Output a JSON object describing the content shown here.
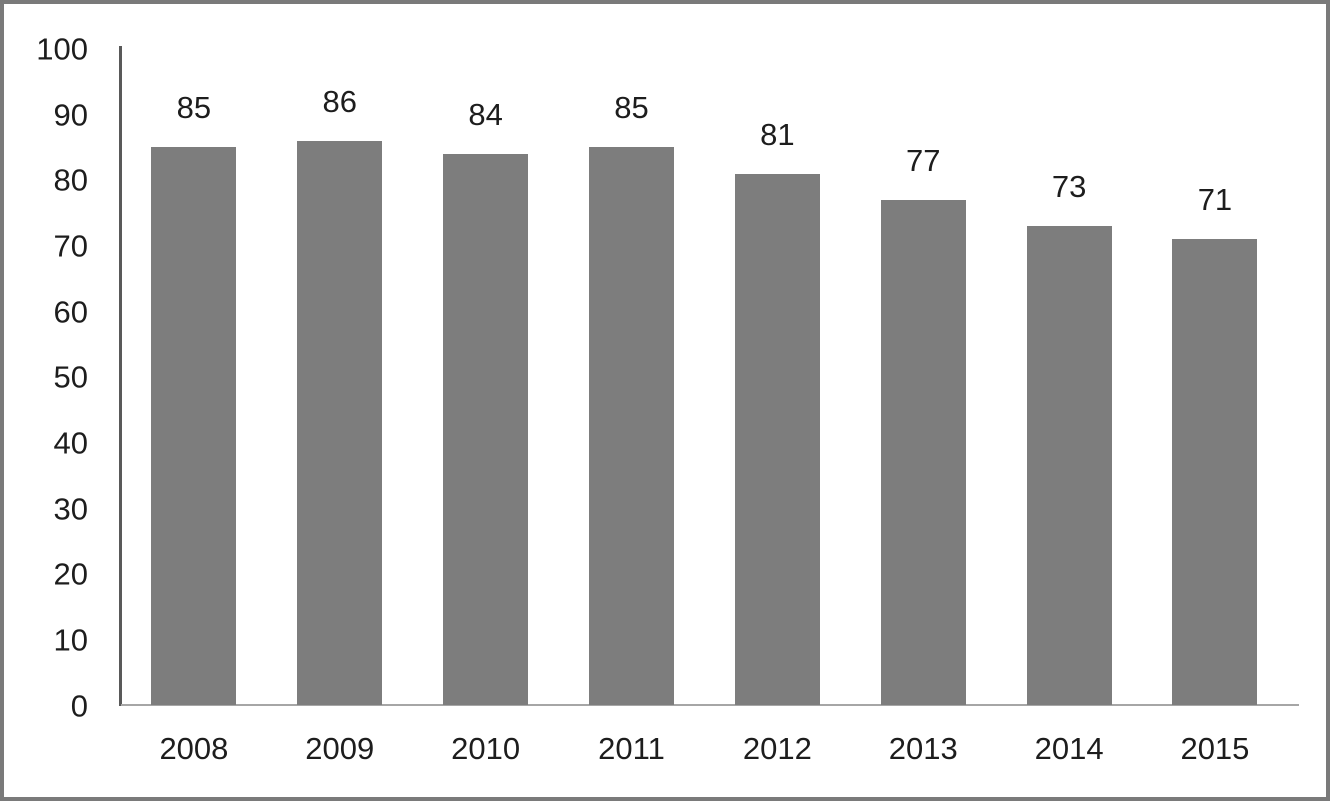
{
  "chart_data": {
    "type": "bar",
    "categories": [
      "2008",
      "2009",
      "2010",
      "2011",
      "2012",
      "2013",
      "2014",
      "2015"
    ],
    "values": [
      85,
      86,
      84,
      85,
      81,
      77,
      73,
      71
    ],
    "value_labels": [
      "85",
      "86",
      "84",
      "85",
      "81",
      "77",
      "73",
      "71"
    ],
    "title": "",
    "xlabel": "",
    "ylabel": "",
    "ylim": [
      0,
      100
    ],
    "ytick_step": 10,
    "yticks": [
      100,
      90,
      80,
      70,
      60,
      50,
      40,
      30,
      20,
      10,
      0
    ],
    "grid": "off",
    "legend": "none",
    "bar_color": "#7d7d7d",
    "axis_line_color": "#595959",
    "baseline_color": "#a6a6a6",
    "label_color": "#1d1d1d"
  },
  "frame": {
    "border_color": "#7a7a7a",
    "background_color": "#ffffff"
  }
}
